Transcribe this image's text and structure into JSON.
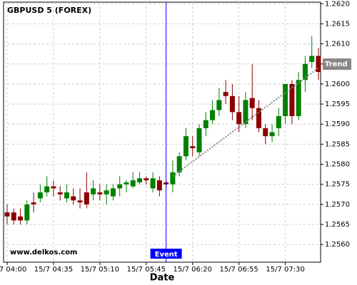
{
  "chart_data": {
    "type": "candlestick",
    "title": "GBPUSD 5 (FOREX)",
    "watermark": "www.delkos.com",
    "x_label": "Date",
    "x": [
      "15/7 04:00",
      "15/7 04:05",
      "15/7 04:10",
      "15/7 04:15",
      "15/7 04:20",
      "15/7 04:25",
      "15/7 04:30",
      "15/7 04:35",
      "15/7 04:40",
      "15/7 04:45",
      "15/7 04:50",
      "15/7 04:55",
      "15/7 05:00",
      "15/7 05:05",
      "15/7 05:10",
      "15/7 05:15",
      "15/7 05:20",
      "15/7 05:25",
      "15/7 05:30",
      "15/7 05:35",
      "15/7 05:40",
      "15/7 05:45",
      "15/7 05:50",
      "15/7 05:55",
      "15/7 06:00",
      "15/7 06:05",
      "15/7 06:10",
      "15/7 06:15",
      "15/7 06:20",
      "15/7 06:25",
      "15/7 06:30",
      "15/7 06:35",
      "15/7 06:40",
      "15/7 06:45",
      "15/7 06:50",
      "15/7 06:55",
      "15/7 07:00",
      "15/7 07:05",
      "15/7 07:10",
      "15/7 07:15",
      "15/7 07:20",
      "15/7 07:25",
      "15/7 07:30",
      "15/7 07:35",
      "15/7 07:40",
      "15/7 07:45",
      "15/7 07:50",
      "15/7 07:55"
    ],
    "open": [
      1.2568,
      1.2568,
      1.2567,
      1.2566,
      1.25705,
      1.25715,
      1.2573,
      1.25745,
      1.2573,
      1.25715,
      1.2572,
      1.2571,
      1.2573,
      1.25725,
      1.2573,
      1.25725,
      1.2572,
      1.2574,
      1.2575,
      1.25745,
      1.25755,
      1.25765,
      1.2574,
      1.2576,
      1.25755,
      1.2575,
      1.2578,
      1.2582,
      1.25845,
      1.2583,
      1.2589,
      1.2591,
      1.25935,
      1.2598,
      1.2597,
      1.2593,
      1.259,
      1.25965,
      1.2594,
      1.2589,
      1.2587,
      1.2589,
      1.2592,
      1.26,
      1.2592,
      1.2601,
      1.26055,
      1.2607
    ],
    "high": [
      1.257,
      1.2569,
      1.2569,
      1.2571,
      1.2573,
      1.2575,
      1.2577,
      1.2576,
      1.25745,
      1.2575,
      1.2574,
      1.2574,
      1.2578,
      1.2576,
      1.2575,
      1.2575,
      1.2575,
      1.2577,
      1.2576,
      1.2578,
      1.2578,
      1.2577,
      1.2578,
      1.2577,
      1.2576,
      1.2581,
      1.2583,
      1.2589,
      1.2587,
      1.259,
      1.2593,
      1.2596,
      1.2599,
      1.2601,
      1.26,
      1.2597,
      1.2598,
      1.2605,
      1.2596,
      1.259,
      1.259,
      1.2594,
      1.26,
      1.2601,
      1.2603,
      1.2607,
      1.2612,
      1.2609
    ],
    "low": [
      1.2565,
      1.2565,
      1.2565,
      1.2565,
      1.2568,
      1.25705,
      1.2572,
      1.2572,
      1.2571,
      1.25705,
      1.257,
      1.2569,
      1.2569,
      1.2571,
      1.2571,
      1.257,
      1.2571,
      1.2572,
      1.2573,
      1.2574,
      1.2575,
      1.2575,
      1.2573,
      1.2572,
      1.2574,
      1.2573,
      1.2577,
      1.2581,
      1.2582,
      1.2582,
      1.2587,
      1.259,
      1.2592,
      1.2595,
      1.2591,
      1.2588,
      1.2589,
      1.2591,
      1.2588,
      1.2585,
      1.25855,
      1.2587,
      1.259,
      1.259,
      1.2591,
      1.2598,
      1.2604,
      1.2601
    ],
    "close": [
      1.2567,
      1.2566,
      1.2566,
      1.257,
      1.257,
      1.2573,
      1.25745,
      1.2574,
      1.25725,
      1.2573,
      1.2571,
      1.25705,
      1.257,
      1.2574,
      1.25725,
      1.25735,
      1.2574,
      1.2575,
      1.25755,
      1.2576,
      1.25765,
      1.2576,
      1.25765,
      1.25735,
      1.2575,
      1.2578,
      1.2582,
      1.2587,
      1.2584,
      1.2589,
      1.2591,
      1.25935,
      1.2596,
      1.2597,
      1.2593,
      1.259,
      1.2596,
      1.2594,
      1.2589,
      1.2587,
      1.2588,
      1.2592,
      1.26,
      1.2592,
      1.2601,
      1.2605,
      1.2607,
      1.2603
    ],
    "up_color": "#008000",
    "down_color": "#8b0000",
    "ylim": [
      1.25556,
      1.26204
    ],
    "yticks": [
      {
        "value": 1.256,
        "label": "1.2560"
      },
      {
        "value": 1.2565,
        "label": "1.2565"
      },
      {
        "value": 1.257,
        "label": "1.2570"
      },
      {
        "value": 1.2575,
        "label": "1.2575"
      },
      {
        "value": 1.258,
        "label": "1.2580"
      },
      {
        "value": 1.2585,
        "label": "1.2585"
      },
      {
        "value": 1.259,
        "label": "1.2590"
      },
      {
        "value": 1.2595,
        "label": "1.2595"
      },
      {
        "value": 1.26,
        "label": "1.2600"
      },
      {
        "value": 1.2605,
        "label": "1.2605"
      },
      {
        "value": 1.261,
        "label": "1.2610"
      },
      {
        "value": 1.2615,
        "label": "1.2615"
      },
      {
        "value": 1.262,
        "label": "1.2620"
      }
    ],
    "grid": true,
    "event": {
      "label": "Event",
      "x": "15/7 06:00",
      "color": "#0000ff"
    },
    "trend": {
      "label": "Trend",
      "x": [
        "15/7 06:05",
        "15/7 07:55"
      ],
      "y": [
        1.2577,
        1.2604
      ],
      "color": "#888888"
    }
  }
}
